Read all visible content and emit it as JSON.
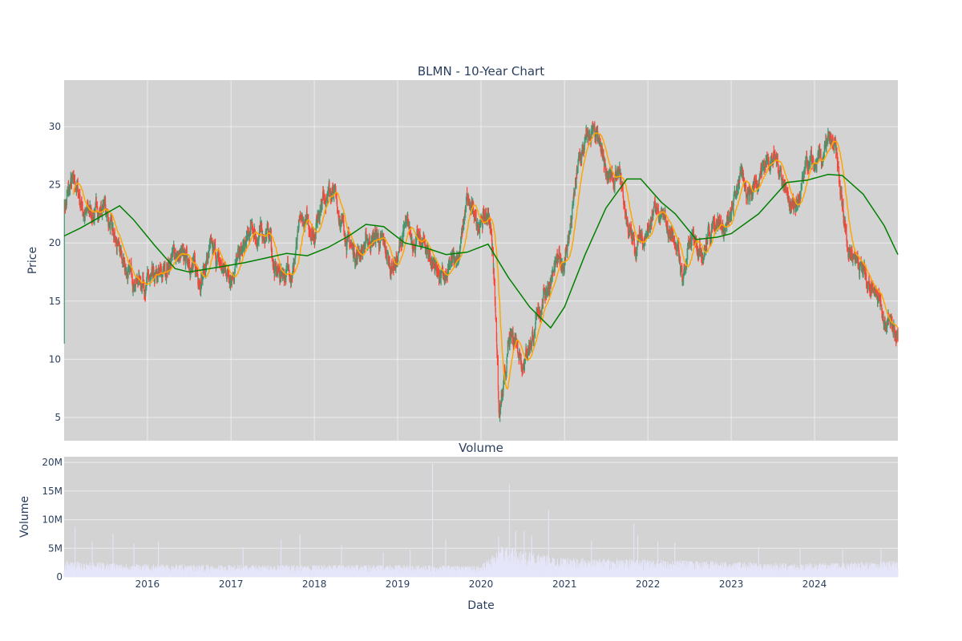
{
  "chart_data": [
    {
      "type": "candlestick",
      "title": "BLMN - 10-Year Chart",
      "ylabel": "Price",
      "ylim": [
        3,
        34
      ],
      "yticks": [
        5,
        10,
        15,
        20,
        25,
        30
      ],
      "xrange": [
        "2015-01-01",
        "2024-12-31"
      ],
      "xticks": [
        "2016",
        "2017",
        "2018",
        "2019",
        "2020",
        "2021",
        "2022",
        "2023",
        "2024"
      ],
      "grid": true,
      "background": "#d3d3d3",
      "colors": {
        "up": "#3d9970",
        "down": "#ff4136",
        "sma_short": "#ffa500",
        "sma_long": "#008000"
      },
      "close_path": [
        [
          "2015-01-02",
          23.2
        ],
        [
          "2015-02-01",
          25.0
        ],
        [
          "2015-03-01",
          24.6
        ],
        [
          "2015-04-01",
          22.5
        ],
        [
          "2015-06-01",
          22.8
        ],
        [
          "2015-07-01",
          23.2
        ],
        [
          "2015-08-01",
          20.5
        ],
        [
          "2015-09-01",
          19.0
        ],
        [
          "2015-10-15",
          17.2
        ],
        [
          "2016-01-01",
          16.7
        ],
        [
          "2016-02-01",
          16.4
        ],
        [
          "2016-03-01",
          17.0
        ],
        [
          "2016-04-01",
          18.2
        ],
        [
          "2016-05-01",
          19.2
        ],
        [
          "2016-06-01",
          18.4
        ],
        [
          "2016-07-01",
          18.8
        ],
        [
          "2016-08-01",
          17.3
        ],
        [
          "2016-09-01",
          17.5
        ],
        [
          "2016-10-01",
          19.2
        ],
        [
          "2016-11-01",
          18.5
        ],
        [
          "2016-12-01",
          17.5
        ],
        [
          "2017-01-01",
          17.6
        ],
        [
          "2017-02-01",
          18.5
        ],
        [
          "2017-03-01",
          19.5
        ],
        [
          "2017-04-01",
          21.0
        ],
        [
          "2017-05-01",
          20.5
        ],
        [
          "2017-06-01",
          21.0
        ],
        [
          "2017-06-20",
          20.8
        ],
        [
          "2017-07-10",
          17.3
        ],
        [
          "2017-09-01",
          17.5
        ],
        [
          "2017-10-01",
          18.0
        ],
        [
          "2017-11-01",
          21.5
        ],
        [
          "2017-12-01",
          21.5
        ],
        [
          "2018-01-01",
          21.0
        ],
        [
          "2018-02-01",
          24.0
        ],
        [
          "2018-03-01",
          24.5
        ],
        [
          "2018-04-01",
          24.0
        ],
        [
          "2018-05-01",
          21.8
        ],
        [
          "2018-06-01",
          20.0
        ],
        [
          "2018-07-01",
          19.0
        ],
        [
          "2018-08-01",
          19.6
        ],
        [
          "2018-09-01",
          20.3
        ],
        [
          "2018-10-01",
          20.5
        ],
        [
          "2018-11-01",
          19.5
        ],
        [
          "2018-12-01",
          18.0
        ],
        [
          "2019-01-01",
          18.8
        ],
        [
          "2019-02-01",
          21.2
        ],
        [
          "2019-03-01",
          20.6
        ],
        [
          "2019-04-01",
          20.0
        ],
        [
          "2019-05-01",
          19.7
        ],
        [
          "2019-06-01",
          18.5
        ],
        [
          "2019-07-01",
          17.5
        ],
        [
          "2019-08-01",
          16.5
        ],
        [
          "2019-09-01",
          18.5
        ],
        [
          "2019-10-01",
          19.5
        ],
        [
          "2019-11-01",
          23.5
        ],
        [
          "2019-12-01",
          22.2
        ],
        [
          "2020-01-01",
          21.8
        ],
        [
          "2020-02-01",
          22.5
        ],
        [
          "2020-02-20",
          20.0
        ],
        [
          "2020-03-10",
          12.0
        ],
        [
          "2020-03-20",
          5.0
        ],
        [
          "2020-04-10",
          7.2
        ],
        [
          "2020-05-01",
          11.0
        ],
        [
          "2020-06-01",
          12.0
        ],
        [
          "2020-07-01",
          10.0
        ],
        [
          "2020-08-01",
          11.5
        ],
        [
          "2020-09-01",
          13.0
        ],
        [
          "2020-10-01",
          15.5
        ],
        [
          "2020-11-01",
          17.0
        ],
        [
          "2020-12-01",
          18.0
        ],
        [
          "2021-01-01",
          18.5
        ],
        [
          "2021-02-01",
          22.0
        ],
        [
          "2021-03-01",
          26.5
        ],
        [
          "2021-04-01",
          28.5
        ],
        [
          "2021-05-01",
          29.5
        ],
        [
          "2021-06-01",
          28.0
        ],
        [
          "2021-07-01",
          26.5
        ],
        [
          "2021-08-01",
          25.0
        ],
        [
          "2021-09-01",
          25.5
        ],
        [
          "2021-10-01",
          22.0
        ],
        [
          "2021-11-01",
          19.5
        ],
        [
          "2021-12-01",
          20.5
        ],
        [
          "2022-01-01",
          21.0
        ],
        [
          "2022-02-01",
          22.5
        ],
        [
          "2022-03-01",
          22.0
        ],
        [
          "2022-04-01",
          21.0
        ],
        [
          "2022-05-01",
          20.5
        ],
        [
          "2022-06-01",
          17.0
        ],
        [
          "2022-07-01",
          19.5
        ],
        [
          "2022-08-01",
          20.5
        ],
        [
          "2022-09-01",
          19.5
        ],
        [
          "2022-10-01",
          21.0
        ],
        [
          "2022-11-01",
          22.5
        ],
        [
          "2022-12-01",
          21.0
        ],
        [
          "2023-01-01",
          22.0
        ],
        [
          "2023-02-01",
          25.5
        ],
        [
          "2023-03-01",
          25.0
        ],
        [
          "2023-04-01",
          24.5
        ],
        [
          "2023-05-01",
          26.0
        ],
        [
          "2023-06-01",
          27.0
        ],
        [
          "2023-07-01",
          27.5
        ],
        [
          "2023-08-01",
          26.5
        ],
        [
          "2023-09-01",
          24.5
        ],
        [
          "2023-10-01",
          23.0
        ],
        [
          "2023-11-01",
          24.0
        ],
        [
          "2023-12-01",
          26.5
        ],
        [
          "2024-01-01",
          26.5
        ],
        [
          "2024-02-01",
          27.0
        ],
        [
          "2024-03-01",
          28.5
        ],
        [
          "2024-04-01",
          27.8
        ],
        [
          "2024-05-01",
          23.0
        ],
        [
          "2024-06-01",
          19.5
        ],
        [
          "2024-07-01",
          19.0
        ],
        [
          "2024-08-01",
          17.5
        ],
        [
          "2024-09-01",
          16.5
        ],
        [
          "2024-10-01",
          16.5
        ],
        [
          "2024-11-01",
          13.5
        ],
        [
          "2024-12-31",
          12.0
        ]
      ],
      "sma_long": [
        [
          "2015-01-01",
          20.6
        ],
        [
          "2015-03-15",
          21.3
        ],
        [
          "2015-07-01",
          22.5
        ],
        [
          "2015-09-01",
          23.2
        ],
        [
          "2015-11-01",
          22.0
        ],
        [
          "2016-02-01",
          19.8
        ],
        [
          "2016-05-01",
          17.8
        ],
        [
          "2016-07-01",
          17.5
        ],
        [
          "2016-11-01",
          17.9
        ],
        [
          "2017-03-01",
          18.3
        ],
        [
          "2017-06-01",
          18.7
        ],
        [
          "2017-09-01",
          19.1
        ],
        [
          "2017-12-01",
          18.9
        ],
        [
          "2018-03-01",
          19.6
        ],
        [
          "2018-06-01",
          20.6
        ],
        [
          "2018-08-15",
          21.6
        ],
        [
          "2018-11-01",
          21.4
        ],
        [
          "2019-02-01",
          20.0
        ],
        [
          "2019-05-01",
          19.6
        ],
        [
          "2019-08-01",
          19.0
        ],
        [
          "2019-11-01",
          19.2
        ],
        [
          "2020-02-01",
          19.9
        ],
        [
          "2020-05-01",
          17.0
        ],
        [
          "2020-08-01",
          14.5
        ],
        [
          "2020-11-01",
          12.7
        ],
        [
          "2021-01-01",
          14.5
        ],
        [
          "2021-04-01",
          19.0
        ],
        [
          "2021-07-01",
          23.0
        ],
        [
          "2021-10-01",
          25.5
        ],
        [
          "2021-12-01",
          25.5
        ],
        [
          "2022-03-01",
          23.5
        ],
        [
          "2022-05-01",
          22.5
        ],
        [
          "2022-08-01",
          20.3
        ],
        [
          "2022-11-01",
          20.5
        ],
        [
          "2023-01-01",
          20.8
        ],
        [
          "2023-05-01",
          22.5
        ],
        [
          "2023-09-01",
          25.2
        ],
        [
          "2023-12-01",
          25.4
        ],
        [
          "2024-03-01",
          25.9
        ],
        [
          "2024-05-01",
          25.8
        ],
        [
          "2024-08-01",
          24.2
        ],
        [
          "2024-11-01",
          21.5
        ],
        [
          "2024-12-31",
          19.0
        ]
      ],
      "sma_short_window": 30
    },
    {
      "type": "bar",
      "title": "Volume",
      "xlabel": "Date",
      "ylabel": "Volume",
      "ylim": [
        0,
        21000000
      ],
      "yticks": [
        0,
        5000000,
        10000000,
        15000000,
        20000000
      ],
      "ytick_labels": [
        "0",
        "5M",
        "10M",
        "15M",
        "20M"
      ],
      "xrange": [
        "2015-01-01",
        "2024-12-31"
      ],
      "xticks": [
        "2016",
        "2017",
        "2018",
        "2019",
        "2020",
        "2021",
        "2022",
        "2023",
        "2024"
      ],
      "bar_color": "#e6e6fa",
      "baseline_volume": [
        [
          "2015-01-01",
          2000000
        ],
        [
          "2016-01-01",
          1600000
        ],
        [
          "2017-01-01",
          1500000
        ],
        [
          "2018-01-01",
          1500000
        ],
        [
          "2019-01-01",
          1500000
        ],
        [
          "2020-01-01",
          1400000
        ],
        [
          "2020-04-01",
          4000000
        ],
        [
          "2020-07-01",
          3200000
        ],
        [
          "2021-01-01",
          2400000
        ],
        [
          "2022-01-01",
          2200000
        ],
        [
          "2023-01-01",
          1900000
        ],
        [
          "2024-01-01",
          1700000
        ],
        [
          "2024-12-31",
          2100000
        ]
      ],
      "spikes": [
        [
          "2015-02-20",
          8800000
        ],
        [
          "2015-05-05",
          6200000
        ],
        [
          "2015-08-05",
          7600000
        ],
        [
          "2015-11-05",
          5800000
        ],
        [
          "2016-02-20",
          6200000
        ],
        [
          "2017-02-25",
          5200000
        ],
        [
          "2017-08-10",
          6500000
        ],
        [
          "2017-11-01",
          7400000
        ],
        [
          "2018-05-01",
          5500000
        ],
        [
          "2018-11-01",
          4300000
        ],
        [
          "2019-02-25",
          4800000
        ],
        [
          "2019-06-05",
          19800000
        ],
        [
          "2019-08-01",
          6600000
        ],
        [
          "2020-03-20",
          7000000
        ],
        [
          "2020-05-05",
          16200000
        ],
        [
          "2020-06-01",
          8000000
        ],
        [
          "2020-07-10",
          8000000
        ],
        [
          "2020-08-10",
          7200000
        ],
        [
          "2020-10-25",
          11700000
        ],
        [
          "2021-05-01",
          6300000
        ],
        [
          "2021-11-01",
          9300000
        ],
        [
          "2021-11-20",
          7300000
        ],
        [
          "2022-02-15",
          6200000
        ],
        [
          "2022-05-01",
          6000000
        ],
        [
          "2023-05-01",
          5200000
        ],
        [
          "2023-11-01",
          5000000
        ],
        [
          "2024-05-05",
          4700000
        ],
        [
          "2024-10-20",
          4800000
        ]
      ]
    }
  ]
}
